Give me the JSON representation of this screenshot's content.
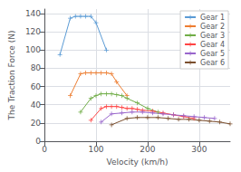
{
  "chart_data": {
    "type": "line",
    "xlabel": "Velocity (km/h)",
    "ylabel": "The Traction Force (N)",
    "xlim": [
      0,
      360
    ],
    "ylim": [
      0,
      145
    ],
    "xticks": [
      0,
      100,
      200,
      300
    ],
    "yticks": [
      0,
      20,
      40,
      60,
      80,
      100,
      120,
      140
    ],
    "grid": true,
    "legend": "upper right",
    "marker": "+",
    "series": [
      {
        "name": "Gear 1",
        "color": "#5B9BD5",
        "x": [
          30,
          50,
          60,
          70,
          80,
          90,
          100,
          120
        ],
        "values": [
          95,
          135,
          137,
          137,
          137,
          137,
          130,
          100
        ]
      },
      {
        "name": "Gear 2",
        "color": "#ED7D31",
        "x": [
          50,
          70,
          80,
          90,
          100,
          110,
          120,
          130,
          140,
          160
        ],
        "values": [
          50,
          74,
          75,
          75,
          75,
          75,
          75,
          74,
          65,
          50
        ]
      },
      {
        "name": "Gear 3",
        "color": "#70AD47",
        "x": [
          70,
          90,
          100,
          110,
          120,
          130,
          140,
          150,
          160,
          180,
          200,
          220
        ],
        "values": [
          32,
          47,
          50,
          52,
          52,
          52,
          51,
          50,
          47,
          42,
          36,
          32
        ]
      },
      {
        "name": "Gear 4",
        "color": "#FF4444",
        "x": [
          90,
          110,
          120,
          130,
          140,
          150,
          160,
          170,
          180,
          190,
          210,
          230,
          250,
          270,
          290
        ],
        "values": [
          23,
          36,
          38,
          38,
          38,
          37,
          36,
          36,
          35,
          34,
          33,
          31,
          29,
          27,
          25
        ]
      },
      {
        "name": "Gear 5",
        "color": "#9966CC",
        "x": [
          110,
          130,
          150,
          170,
          190,
          210,
          230,
          250,
          270,
          290,
          310,
          330
        ],
        "values": [
          21,
          30,
          31,
          32,
          32,
          31,
          30,
          29,
          28,
          27,
          26,
          25
        ]
      },
      {
        "name": "Gear 6",
        "color": "#7B4F2E",
        "x": [
          130,
          160,
          180,
          200,
          220,
          240,
          260,
          280,
          300,
          320,
          340,
          360
        ],
        "values": [
          18,
          25,
          26,
          26,
          26,
          25,
          24,
          24,
          23,
          22,
          21,
          19
        ]
      }
    ]
  }
}
